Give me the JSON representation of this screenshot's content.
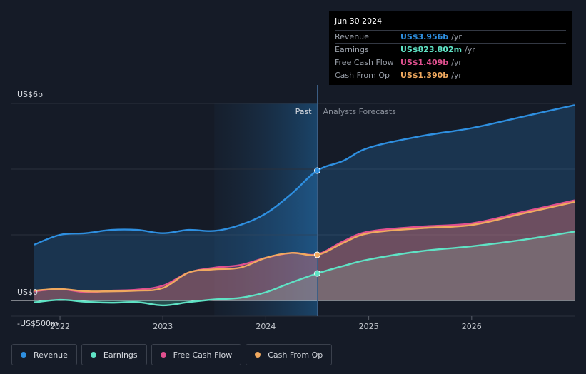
{
  "tooltip": {
    "date": "Jun 30 2024",
    "rows": [
      {
        "label": "Revenue",
        "value": "US$3.956b",
        "unit": "/yr",
        "color": "#2e8fe0"
      },
      {
        "label": "Earnings",
        "value": "US$823.802m",
        "unit": "/yr",
        "color": "#5fe3c5"
      },
      {
        "label": "Free Cash Flow",
        "value": "US$1.409b",
        "unit": "/yr",
        "color": "#e0508f"
      },
      {
        "label": "Cash From Op",
        "value": "US$1.390b",
        "unit": "/yr",
        "color": "#f0a95f"
      }
    ]
  },
  "legend": [
    {
      "label": "Revenue",
      "color": "#2e8fe0"
    },
    {
      "label": "Earnings",
      "color": "#5fe3c5"
    },
    {
      "label": "Free Cash Flow",
      "color": "#e0508f"
    },
    {
      "label": "Cash From Op",
      "color": "#f0a95f"
    }
  ],
  "chart_data": {
    "type": "area",
    "ylim": [
      -500,
      6000
    ],
    "y_tick_labels": [
      "US$6b",
      "US$0",
      "-US$500m"
    ],
    "x_tick_labels": [
      "2022",
      "2023",
      "2024",
      "2025",
      "2026"
    ],
    "x_ticks": [
      2022.0,
      2023.0,
      2024.0,
      2025.0,
      2026.0
    ],
    "xlim": [
      2021.5,
      2027.0
    ],
    "past_label": "Past",
    "forecast_label": "Analysts Forecasts",
    "highlight_start": 2023.5,
    "divider_x": 2024.5,
    "grid": true,
    "series": [
      {
        "name": "Revenue",
        "color": "#2e8fe0",
        "x": [
          2021.75,
          2022.0,
          2022.25,
          2022.5,
          2022.75,
          2023.0,
          2023.25,
          2023.5,
          2023.75,
          2024.0,
          2024.25,
          2024.5,
          2024.75,
          2025.0,
          2025.5,
          2026.0,
          2026.5,
          2027.0
        ],
        "y": [
          1700,
          2000,
          2050,
          2150,
          2150,
          2050,
          2150,
          2120,
          2300,
          2650,
          3250,
          3956,
          4250,
          4650,
          5000,
          5250,
          5600,
          5950
        ]
      },
      {
        "name": "Earnings",
        "color": "#5fe3c5",
        "x": [
          2021.75,
          2022.0,
          2022.25,
          2022.5,
          2022.75,
          2023.0,
          2023.25,
          2023.5,
          2023.75,
          2024.0,
          2024.25,
          2024.5,
          2024.75,
          2025.0,
          2025.5,
          2026.0,
          2026.5,
          2027.0
        ],
        "y": [
          -60,
          20,
          -40,
          -70,
          -50,
          -150,
          -50,
          30,
          80,
          250,
          550,
          823.8,
          1050,
          1250,
          1500,
          1650,
          1850,
          2100
        ]
      },
      {
        "name": "Free Cash Flow",
        "color": "#e0508f",
        "x": [
          2021.75,
          2022.0,
          2022.25,
          2022.5,
          2022.75,
          2023.0,
          2023.25,
          2023.5,
          2023.75,
          2024.0,
          2024.25,
          2024.5,
          2024.75,
          2025.0,
          2025.5,
          2026.0,
          2026.5,
          2027.0
        ],
        "y": [
          280,
          350,
          250,
          300,
          330,
          450,
          850,
          1000,
          1080,
          1300,
          1450,
          1409,
          1800,
          2100,
          2250,
          2350,
          2700,
          3050
        ]
      },
      {
        "name": "Cash From Op",
        "color": "#f0a95f",
        "x": [
          2021.75,
          2022.0,
          2022.25,
          2022.5,
          2022.75,
          2023.0,
          2023.25,
          2023.5,
          2023.75,
          2024.0,
          2024.25,
          2024.5,
          2024.75,
          2025.0,
          2025.5,
          2026.0,
          2026.5,
          2027.0
        ],
        "y": [
          300,
          350,
          280,
          280,
          300,
          380,
          850,
          950,
          1000,
          1300,
          1450,
          1390,
          1750,
          2050,
          2200,
          2300,
          2650,
          3000
        ]
      }
    ]
  }
}
